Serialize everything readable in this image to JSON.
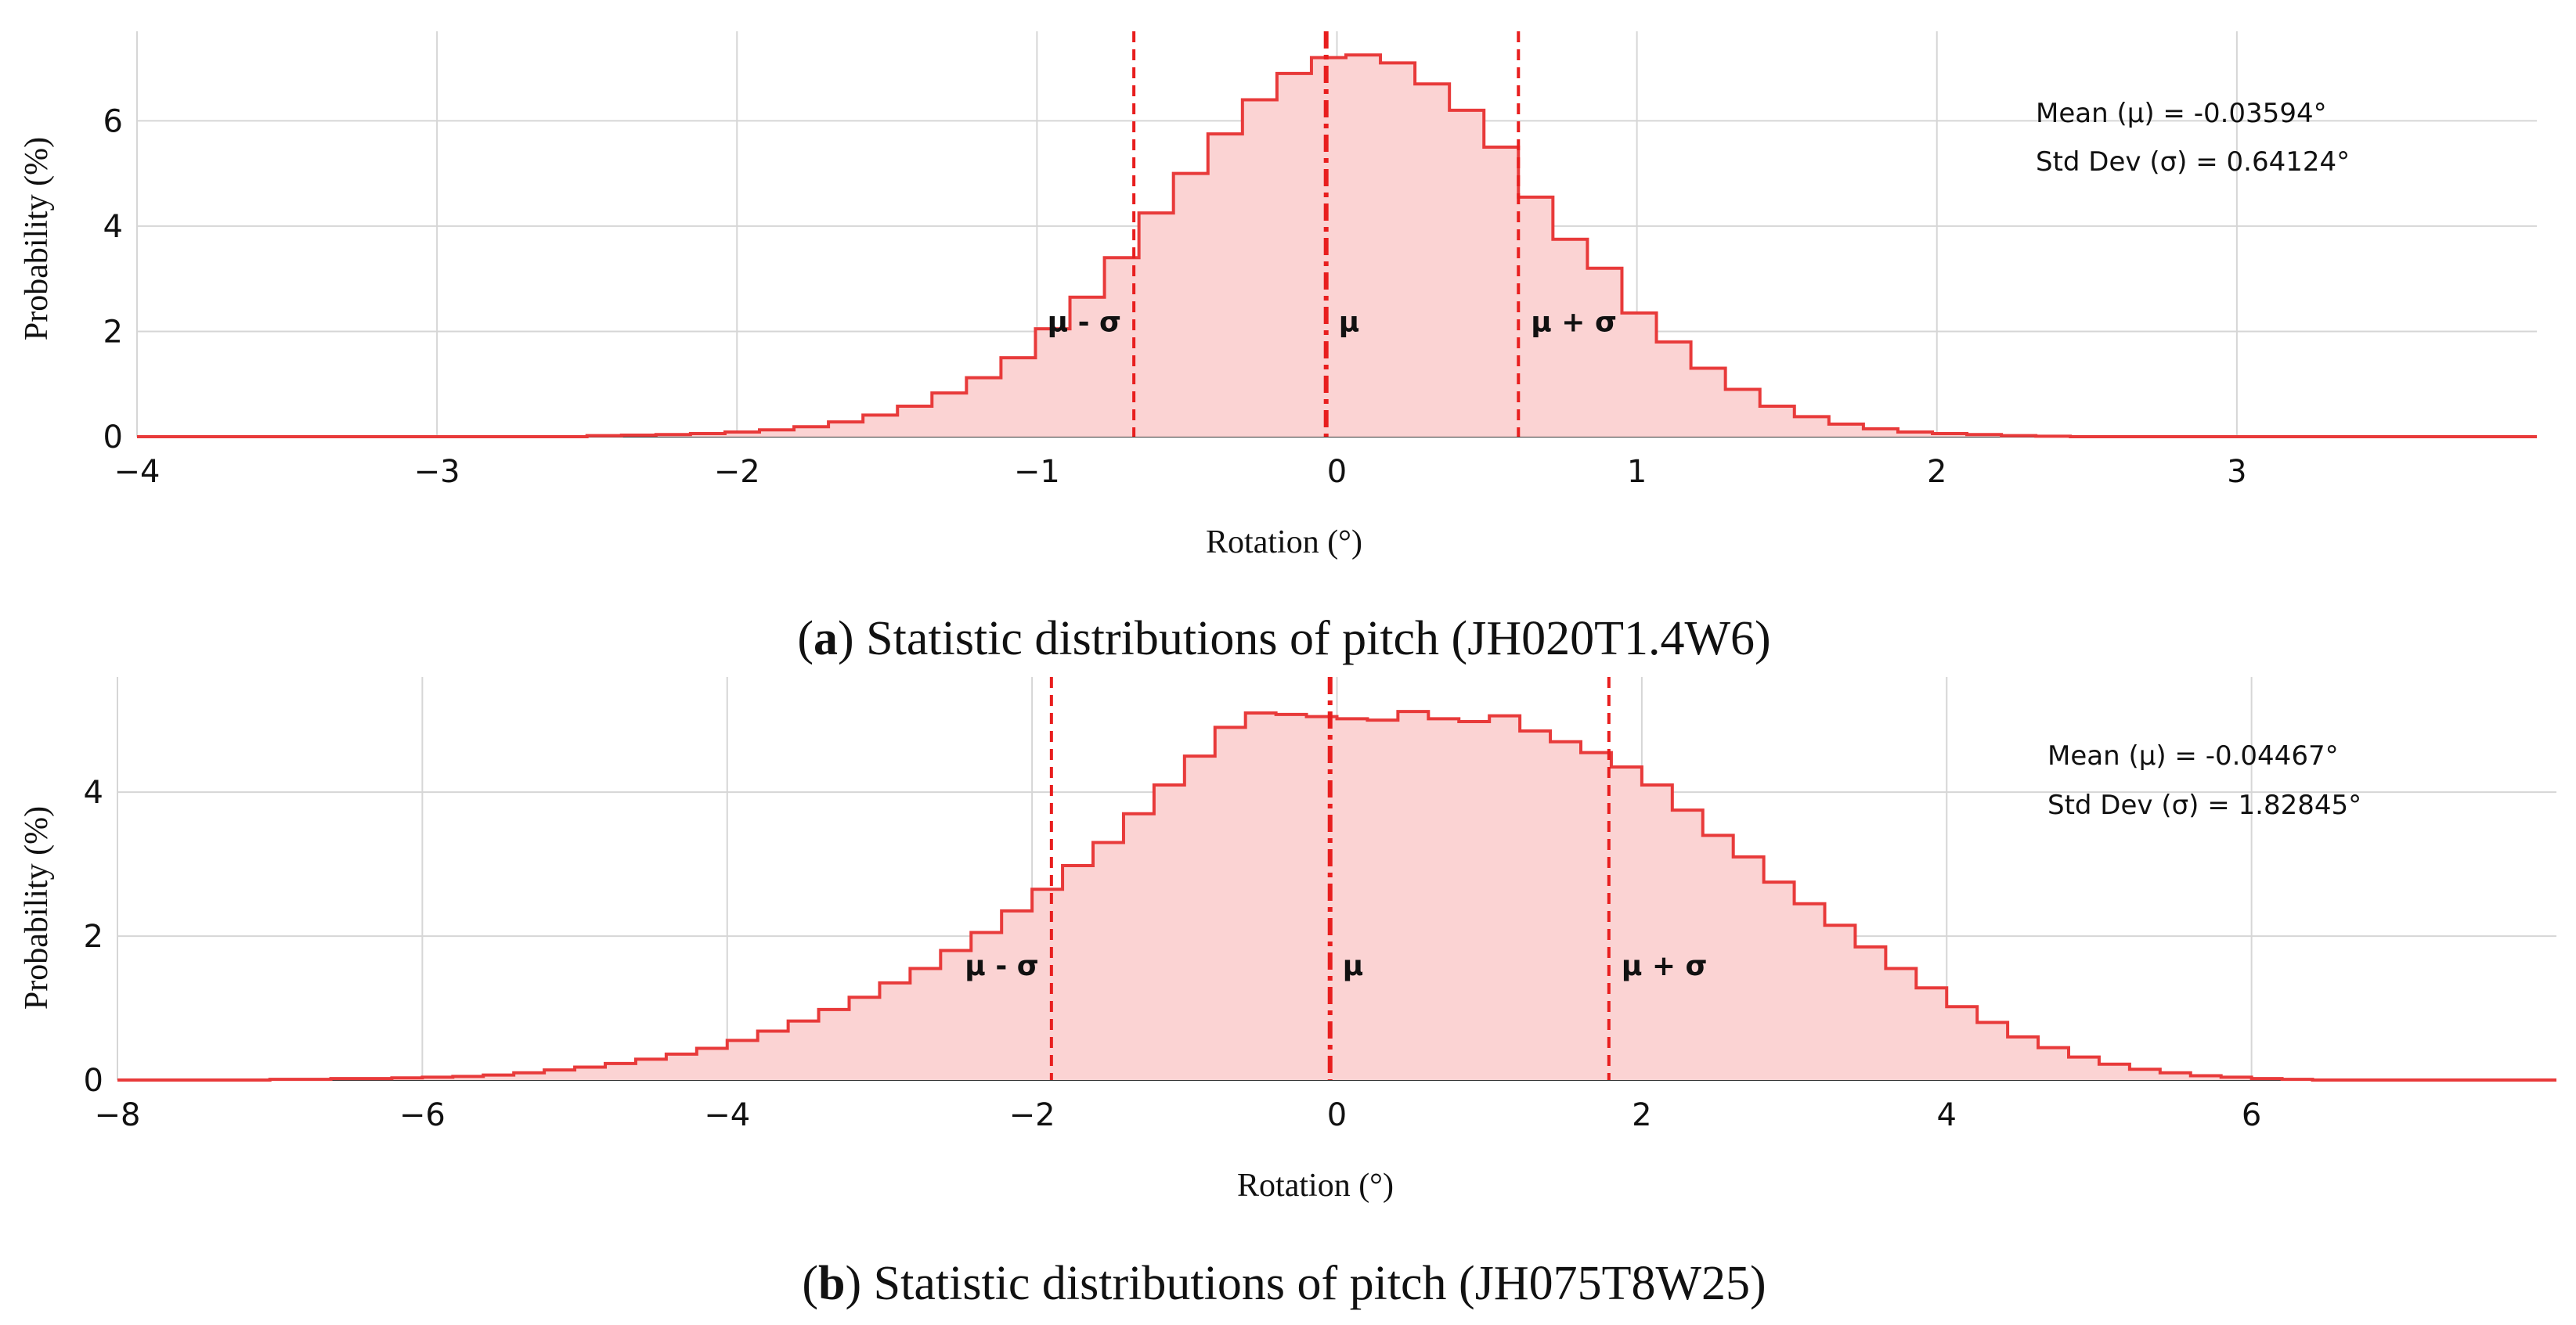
{
  "chart_data": [
    {
      "type": "bar",
      "style": "step-histogram",
      "caption": {
        "letter": "a",
        "text": " Statistic distributions of pitch (JH020T1.4W6)"
      },
      "xlabel": "Rotation (°)",
      "ylabel": "Probability (%)",
      "xlim": [
        -4,
        4
      ],
      "ylim": [
        0,
        7.7
      ],
      "xticks": [
        -4,
        -3,
        -2,
        -1,
        0,
        1,
        2,
        3
      ],
      "yticks": [
        0,
        2,
        4,
        6
      ],
      "grid": true,
      "mean_text": "Mean (μ) = -0.03594°",
      "std_text": "Std Dev (σ) = 0.64124°",
      "stats_position": "top-right",
      "mean": -0.03594,
      "std": 0.64124,
      "markers": [
        {
          "label": "μ - σ",
          "x": -0.677
        },
        {
          "label": "μ",
          "x": -0.036
        },
        {
          "label": "μ + σ",
          "x": 0.605
        }
      ],
      "bin_width": 0.115,
      "bin_start": -2.5,
      "values": [
        0.02,
        0.03,
        0.04,
        0.06,
        0.09,
        0.13,
        0.19,
        0.28,
        0.41,
        0.58,
        0.83,
        1.12,
        1.5,
        2.05,
        2.65,
        3.4,
        4.25,
        5.0,
        5.75,
        6.4,
        6.9,
        7.2,
        7.25,
        7.1,
        6.7,
        6.2,
        5.5,
        4.55,
        3.75,
        3.2,
        2.35,
        1.8,
        1.3,
        0.9,
        0.58,
        0.38,
        0.24,
        0.15,
        0.09,
        0.06,
        0.04,
        0.02,
        0.01
      ],
      "series_color": "#e83a3a",
      "fill_color": "#fbd3d3"
    },
    {
      "type": "bar",
      "style": "step-histogram",
      "caption": {
        "letter": "b",
        "text": " Statistic distributions of pitch (JH075T8W25)"
      },
      "xlabel": "Rotation (°)",
      "ylabel": "Probability (%)",
      "xlim": [
        -8,
        8
      ],
      "ylim": [
        0,
        5.6
      ],
      "xticks": [
        -8,
        -6,
        -4,
        -2,
        0,
        2,
        4,
        6
      ],
      "yticks": [
        0,
        2,
        4
      ],
      "grid": true,
      "mean_text": "Mean (μ) = -0.04467°",
      "std_text": "Std Dev (σ) = 1.82845°",
      "stats_position": "top-right",
      "mean": -0.04467,
      "std": 1.82845,
      "markers": [
        {
          "label": "μ - σ",
          "x": -1.873
        },
        {
          "label": "μ",
          "x": -0.045
        },
        {
          "label": "μ + σ",
          "x": 1.784
        }
      ],
      "bin_width": 0.2,
      "bin_start": -7.0,
      "values": [
        0.01,
        0.01,
        0.02,
        0.02,
        0.03,
        0.04,
        0.05,
        0.07,
        0.1,
        0.14,
        0.18,
        0.23,
        0.29,
        0.36,
        0.44,
        0.55,
        0.68,
        0.82,
        0.98,
        1.15,
        1.35,
        1.55,
        1.8,
        2.05,
        2.35,
        2.65,
        2.98,
        3.3,
        3.7,
        4.1,
        4.5,
        4.9,
        5.1,
        5.08,
        5.05,
        5.02,
        5.0,
        5.12,
        5.02,
        4.98,
        5.06,
        4.85,
        4.7,
        4.55,
        4.35,
        4.1,
        3.75,
        3.4,
        3.1,
        2.75,
        2.45,
        2.15,
        1.85,
        1.55,
        1.28,
        1.02,
        0.8,
        0.6,
        0.45,
        0.32,
        0.22,
        0.15,
        0.1,
        0.06,
        0.04,
        0.02,
        0.01
      ],
      "series_color": "#e83a3a",
      "fill_color": "#fbd3d3"
    }
  ]
}
